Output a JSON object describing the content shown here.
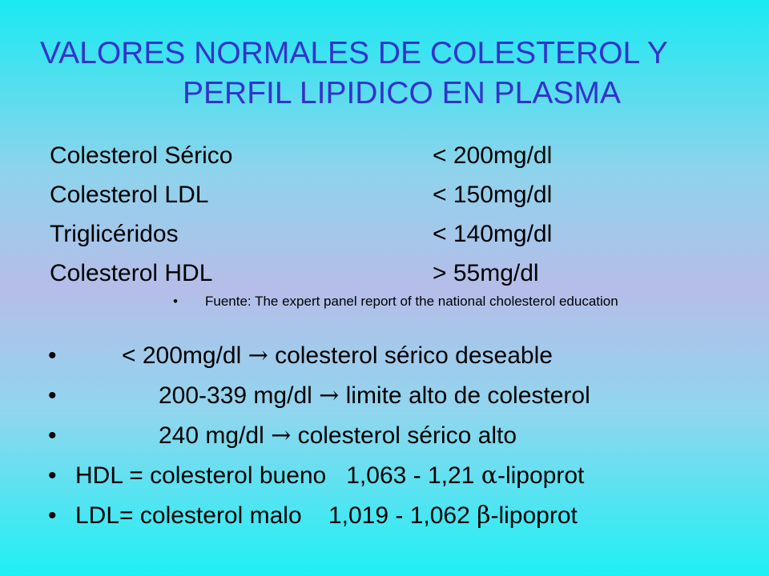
{
  "title": {
    "line1": "VALORES NORMALES DE COLESTEROL Y",
    "line2": "PERFIL LIPIDICO EN PLASMA"
  },
  "values": [
    {
      "name": "Colesterol Sérico",
      "value": "< 200mg/dl"
    },
    {
      "name": "Colesterol LDL",
      "value": "< 150mg/dl"
    },
    {
      "name": "Triglicéridos",
      "value": "< 140mg/dl"
    },
    {
      "name": "Colesterol HDL",
      "value": "> 55mg/dl"
    }
  ],
  "source": {
    "bullet": "•",
    "text": "Fuente: The expert panel report of the national cholesterol education"
  },
  "bullets": [
    {
      "bullet": "•",
      "pre": "< 200mg/dl ",
      "sym": "→",
      "post": " colesterol sérico deseable"
    },
    {
      "bullet": "•",
      "pre": "200-339 mg/dl ",
      "sym": "→",
      "post": " limite alto de colesterol"
    },
    {
      "bullet": "",
      "pre": "240 mg/dl ",
      "sym": "→",
      "post": " colesterol sérico alto"
    },
    {
      "bullet": "•",
      "pre": "HDL = colesterol bueno   1,063 - 1,21 ",
      "sym": "α",
      "post": "-lipoprot"
    },
    {
      "bullet": "•",
      "pre": "LDL= colesterol malo    1,019 - 1,062 ",
      "sym": "β",
      "post": "-lipoprot"
    }
  ]
}
